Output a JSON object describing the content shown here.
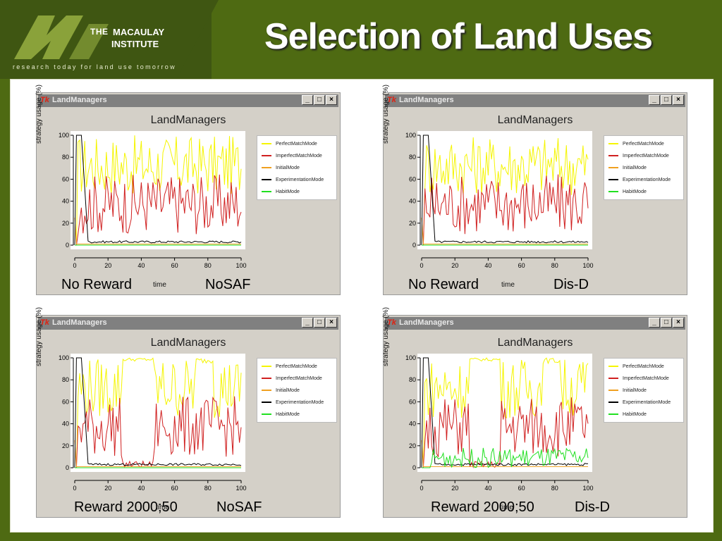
{
  "header": {
    "logo_the": "THE",
    "logo_line1": "MACAULAY",
    "logo_line2": "INSTITUTE",
    "tagline": "research today for land use tomorrow",
    "title": "Selection of Land Uses"
  },
  "window": {
    "title": "LandManagers",
    "plot_title": "LandManagers",
    "ylabel": "strategy usage (%)",
    "xlabel": "time",
    "buttons": [
      "_",
      "□",
      "×"
    ],
    "tk_logo": "Tk",
    "legend": [
      {
        "name": "PerfectMatchMode",
        "color": "#f5f500"
      },
      {
        "name": "ImperfectMatchMode",
        "color": "#d02020"
      },
      {
        "name": "InitialMode",
        "color": "#f0a020"
      },
      {
        "name": "ExperimentationMode",
        "color": "#000000"
      },
      {
        "name": "HabitMode",
        "color": "#20e020"
      }
    ],
    "yticks": [
      "0",
      "20",
      "40",
      "60",
      "80",
      "100"
    ],
    "xticks": [
      "0",
      "20",
      "40",
      "60",
      "80",
      "100"
    ]
  },
  "panels": [
    {
      "caption_left": "No Reward",
      "caption_right": "NoSAF"
    },
    {
      "caption_left": "No Reward",
      "caption_right": "Dis-D"
    },
    {
      "caption_left": "Reward 2000;50",
      "caption_right": "NoSAF"
    },
    {
      "caption_left": "Reward 2000;50",
      "caption_right": "Dis-D"
    }
  ],
  "chart_data": [
    {
      "type": "line",
      "xlim": [
        0,
        100
      ],
      "ylim": [
        0,
        100
      ],
      "xlabel": "time",
      "ylabel": "strategy usage (%)",
      "title": "LandManagers"
    },
    {
      "type": "line",
      "xlim": [
        0,
        100
      ],
      "ylim": [
        0,
        100
      ],
      "xlabel": "time",
      "ylabel": "strategy usage (%)",
      "title": "LandManagers"
    },
    {
      "type": "line",
      "xlim": [
        0,
        100
      ],
      "ylim": [
        0,
        100
      ],
      "xlabel": "time",
      "ylabel": "strategy usage (%)",
      "title": "LandManagers"
    },
    {
      "type": "line",
      "xlim": [
        0,
        100
      ],
      "ylim": [
        0,
        100
      ],
      "xlabel": "time",
      "ylabel": "strategy usage (%)",
      "title": "LandManagers"
    }
  ]
}
